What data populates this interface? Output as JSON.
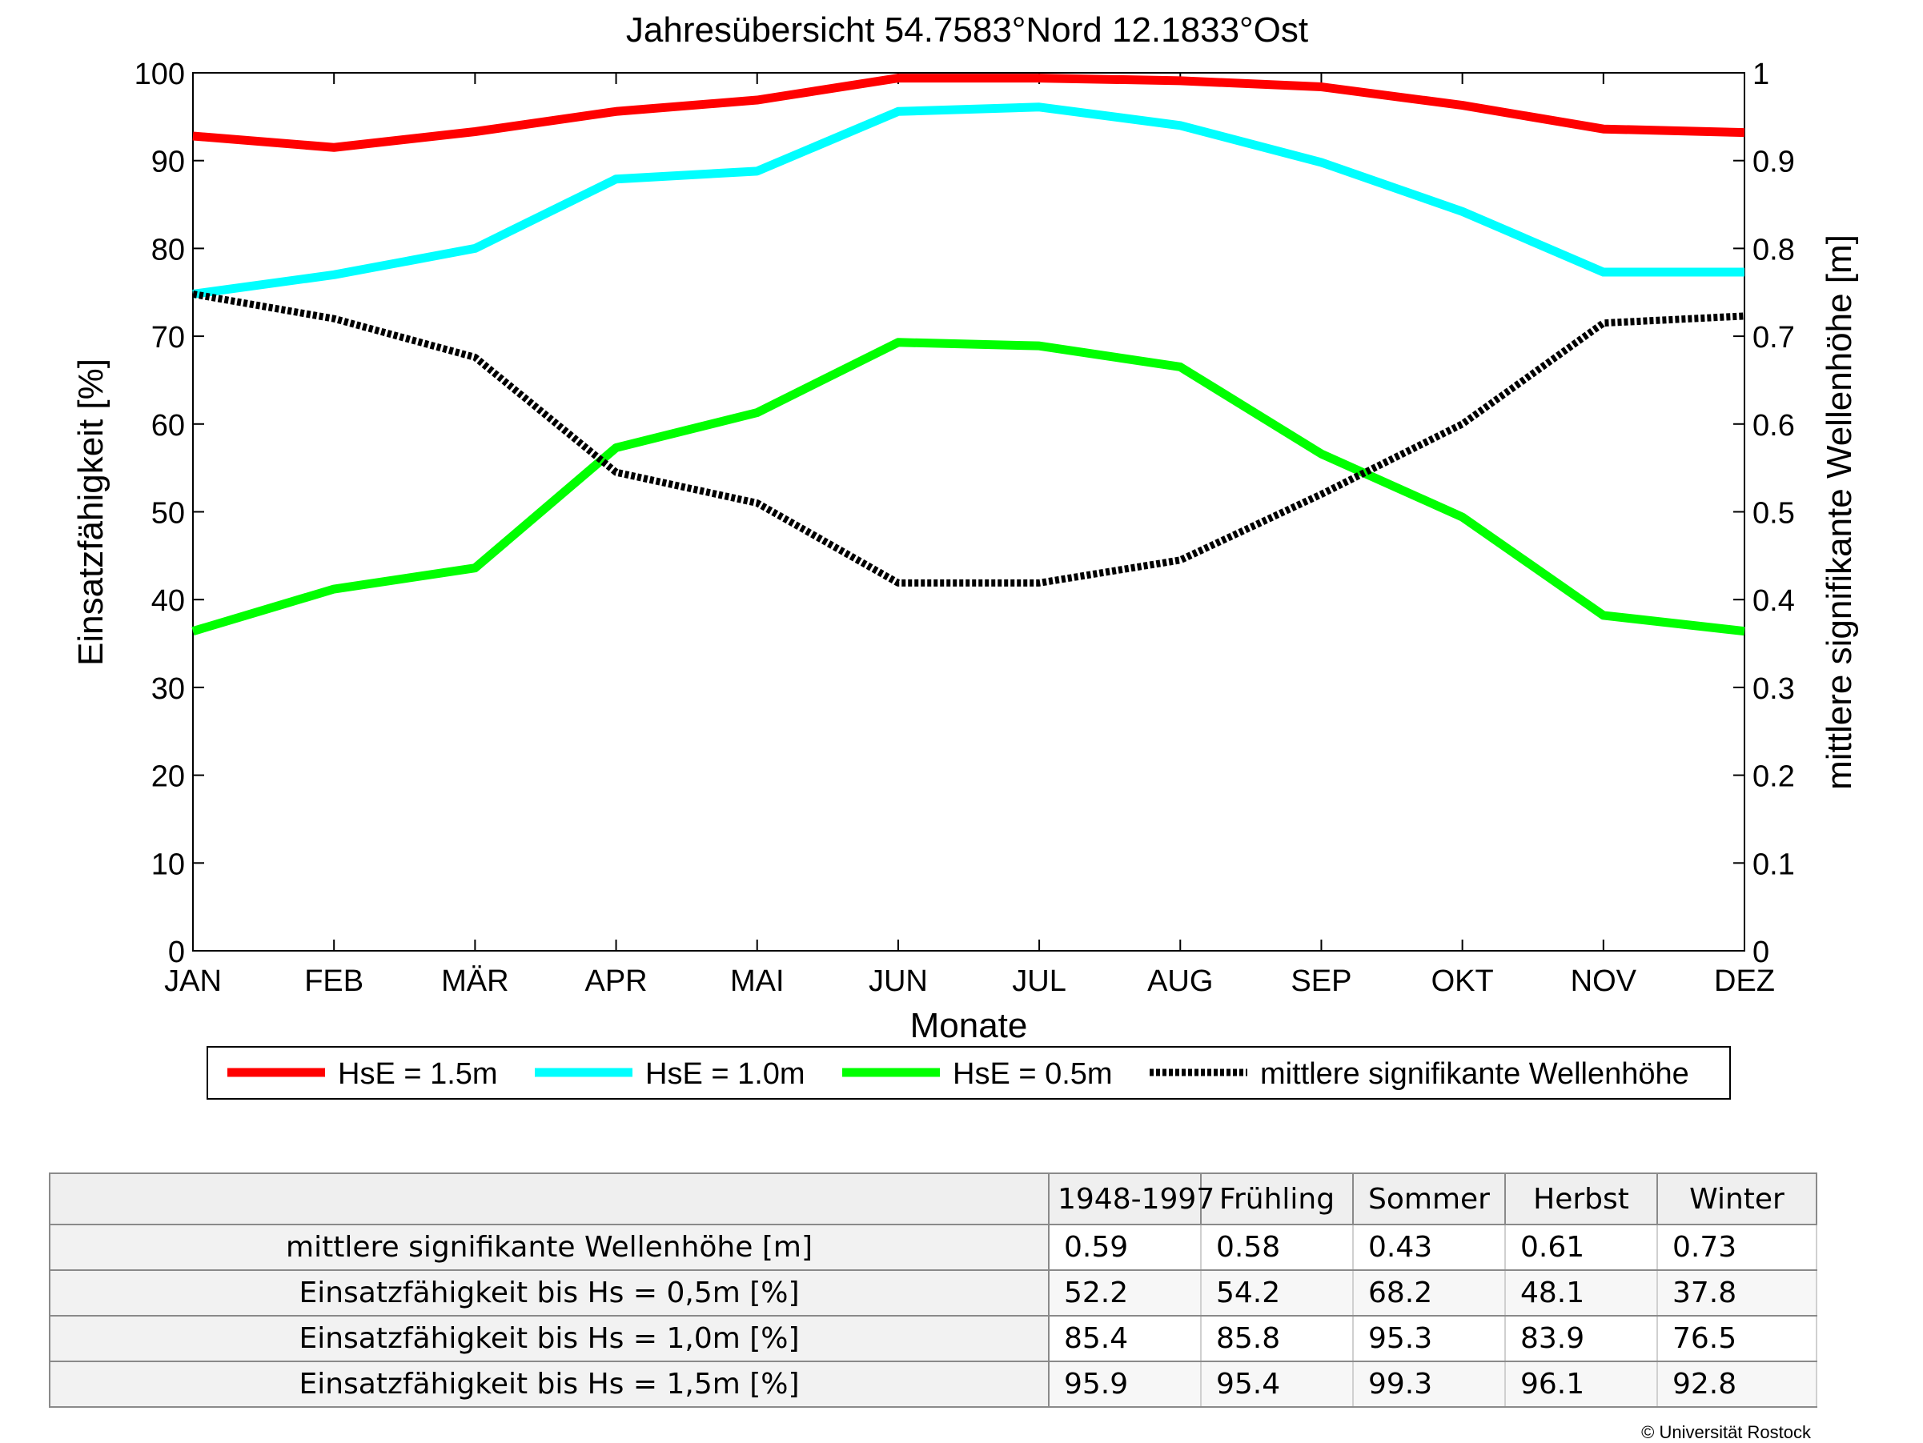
{
  "chart_data": {
    "type": "line",
    "title": "Jahresübersicht  54.7583°Nord  12.1833°Ost",
    "xlabel": "Monate",
    "ylabel": "Einsatzfähigkeit [%]",
    "y2label": "mittlere signifikante Wellenhöhe [m]",
    "categories": [
      "JAN",
      "FEB",
      "MÄR",
      "APR",
      "MAI",
      "JUN",
      "JUL",
      "AUG",
      "SEP",
      "OKT",
      "NOV",
      "DEZ"
    ],
    "ylim": [
      0,
      100
    ],
    "y2lim": [
      0,
      1
    ],
    "yticks": [
      "0",
      "10",
      "20",
      "30",
      "40",
      "50",
      "60",
      "70",
      "80",
      "90",
      "100"
    ],
    "y2ticks": [
      "0",
      "0.1",
      "0.2",
      "0.3",
      "0.4",
      "0.5",
      "0.6",
      "0.7",
      "0.8",
      "0.9",
      "1"
    ],
    "grid": false,
    "legend_position": "bottom",
    "series": [
      {
        "name": "HsE = 1.5m",
        "axis": "left",
        "color": "#ff0000",
        "style": "solid",
        "values": [
          92.8,
          91.5,
          93.3,
          95.6,
          96.9,
          99.4,
          99.4,
          99.1,
          98.4,
          96.3,
          93.6,
          93.2
        ]
      },
      {
        "name": "HsE = 1.0m",
        "axis": "left",
        "color": "#00ffff",
        "style": "solid",
        "values": [
          74.8,
          77.0,
          80.0,
          87.9,
          88.8,
          95.6,
          96.1,
          94.0,
          89.8,
          84.2,
          77.3,
          77.3
        ]
      },
      {
        "name": "HsE = 0.5m",
        "axis": "left",
        "color": "#00ff00",
        "style": "solid",
        "values": [
          36.4,
          41.2,
          43.6,
          57.3,
          61.3,
          69.3,
          68.9,
          66.5,
          56.6,
          49.4,
          38.2,
          36.4
        ]
      },
      {
        "name": "mittlere signifikante Wellenhöhe",
        "axis": "right",
        "color": "#000000",
        "style": "dotted",
        "values": [
          0.748,
          0.72,
          0.676,
          0.545,
          0.51,
          0.419,
          0.419,
          0.445,
          0.52,
          0.6,
          0.715,
          0.723
        ]
      }
    ]
  },
  "table": {
    "columns": [
      "1948-1997",
      "Frühling",
      "Sommer",
      "Herbst",
      "Winter"
    ],
    "rows": [
      {
        "label": "mittlere signifikante Wellenhöhe [m]",
        "values": [
          "0.59",
          "0.58",
          "0.43",
          "0.61",
          "0.73"
        ]
      },
      {
        "label": "Einsatzfähigkeit bis Hs = 0,5m [%]",
        "values": [
          "52.2",
          "54.2",
          "68.2",
          "48.1",
          "37.8"
        ]
      },
      {
        "label": "Einsatzfähigkeit bis Hs = 1,0m [%]",
        "values": [
          "85.4",
          "85.8",
          "95.3",
          "83.9",
          "76.5"
        ]
      },
      {
        "label": "Einsatzfähigkeit bis Hs = 1,5m [%]",
        "values": [
          "95.9",
          "95.4",
          "99.3",
          "96.1",
          "92.8"
        ]
      }
    ]
  },
  "footer": {
    "copyright": "© Universität Rostock"
  }
}
